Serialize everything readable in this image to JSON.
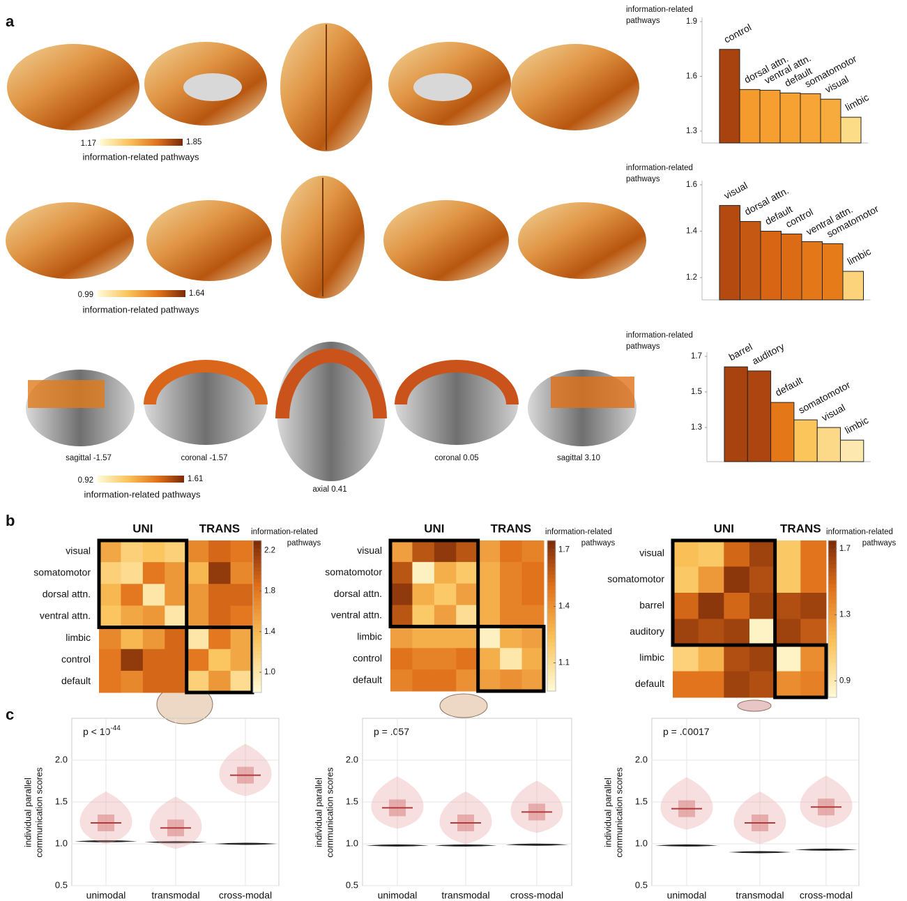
{
  "panel_labels": [
    "a",
    "b",
    "c"
  ],
  "brain_maps": [
    {
      "colorbar_min": 1.17,
      "colorbar_max": 1.85,
      "colorbar_label": "information-related pathways"
    },
    {
      "colorbar_min": 0.99,
      "colorbar_max": 1.64,
      "colorbar_label": "information-related pathways"
    },
    {
      "colorbar_min": 0.92,
      "colorbar_max": 1.61,
      "colorbar_label": "information-related pathways",
      "view_labels": [
        "sagittal -1.57",
        "coronal -1.57",
        "axial 0.41",
        "coronal 0.05",
        "sagittal 3.10"
      ]
    }
  ],
  "chart_data": [
    {
      "type": "bar",
      "ylabel": [
        "information-related",
        "pathways"
      ],
      "categories": [
        "control",
        "dorsal attn.",
        "ventral attn.",
        "default",
        "somatomotor",
        "visual",
        "limbic"
      ],
      "values": [
        1.748,
        1.528,
        1.524,
        1.509,
        1.505,
        1.475,
        1.376
      ],
      "colors": [
        "#a8430f",
        "#f59a2c",
        "#f69e30",
        "#f6a233",
        "#f6a536",
        "#f7ab3d",
        "#fcdc87"
      ],
      "ylim": [
        1.235,
        1.9
      ],
      "yticks": [
        1.3,
        1.6,
        1.9
      ]
    },
    {
      "type": "bar",
      "ylabel": [
        "information-related",
        "pathways"
      ],
      "categories": [
        "visual",
        "dorsal attn.",
        "default",
        "control",
        "ventral attn.",
        "somatomotor",
        "limbic"
      ],
      "values": [
        1.511,
        1.442,
        1.4,
        1.388,
        1.355,
        1.346,
        1.227
      ],
      "colors": [
        "#b54a10",
        "#c55812",
        "#d86514",
        "#dc6b16",
        "#e47818",
        "#e67b1a",
        "#fcd37a"
      ],
      "ylim": [
        1.104,
        1.6
      ],
      "yticks": [
        1.2,
        1.4,
        1.6
      ]
    },
    {
      "type": "bar",
      "ylabel": [
        "information-related",
        "pathways"
      ],
      "categories": [
        "barrel",
        "auditory",
        "default",
        "somatomotor",
        "visual",
        "limbic"
      ],
      "values": [
        1.641,
        1.618,
        1.441,
        1.343,
        1.3,
        1.229
      ],
      "colors": [
        "#a8430f",
        "#ad4510",
        "#e47818",
        "#fbc55b",
        "#fcd988",
        "#fde9b0"
      ],
      "ylim": [
        1.108,
        1.7
      ],
      "yticks": [
        1.3,
        1.5,
        1.7
      ]
    },
    {
      "type": "heatmap",
      "colorbar_label": [
        "information-related",
        "pathways"
      ],
      "groups": [
        {
          "name": "UNI",
          "size": 4
        },
        {
          "name": "TRANS",
          "size": 3
        }
      ],
      "labels": [
        "visual",
        "somatomotor",
        "dorsal attn.",
        "ventral attn.",
        "limbic",
        "control",
        "default"
      ],
      "matrix": [
        [
          1.5,
          1.2,
          1.3,
          1.2,
          1.7,
          1.9,
          1.8
        ],
        [
          1.2,
          1.1,
          1.8,
          1.6,
          1.4,
          2.2,
          1.7
        ],
        [
          1.4,
          1.8,
          1.0,
          1.6,
          1.6,
          1.9,
          1.9
        ],
        [
          1.3,
          1.5,
          1.6,
          1.0,
          1.6,
          1.9,
          1.8
        ],
        [
          1.7,
          1.4,
          1.6,
          1.9,
          1.0,
          1.8,
          1.5
        ],
        [
          1.8,
          2.2,
          1.9,
          1.9,
          1.8,
          1.3,
          1.5
        ],
        [
          1.8,
          1.7,
          1.9,
          1.9,
          1.2,
          1.6,
          1.1
        ]
      ],
      "clim": [
        0.8,
        2.3
      ],
      "cticks": [
        2.2,
        1.8,
        1.4,
        {
          "value": 1,
          "label": "1.0"
        }
      ]
    },
    {
      "type": "heatmap",
      "colorbar_label": [
        "information-related",
        "pathways"
      ],
      "groups": [
        {
          "name": "UNI",
          "size": 4
        },
        {
          "name": "TRANS",
          "size": 3
        }
      ],
      "labels": [
        "visual",
        "somatomotor",
        "dorsal attn.",
        "ventral attn.",
        "limbic",
        "control",
        "default"
      ],
      "matrix": [
        [
          1.35,
          1.6,
          1.7,
          1.6,
          1.35,
          1.5,
          1.45
        ],
        [
          1.6,
          1.0,
          1.3,
          1.2,
          1.3,
          1.45,
          1.5
        ],
        [
          1.7,
          1.3,
          1.2,
          1.35,
          1.3,
          1.45,
          1.5
        ],
        [
          1.6,
          1.2,
          1.35,
          1.1,
          1.3,
          1.45,
          1.45
        ],
        [
          1.35,
          1.3,
          1.3,
          1.3,
          1.0,
          1.3,
          1.35
        ],
        [
          1.5,
          1.45,
          1.45,
          1.5,
          1.3,
          1.05,
          1.3
        ],
        [
          1.45,
          1.5,
          1.5,
          1.4,
          1.35,
          1.4,
          1.35
        ]
      ],
      "clim": [
        0.95,
        1.75
      ],
      "cticks": [
        1.7,
        1.4,
        1.1
      ]
    },
    {
      "type": "heatmap",
      "colorbar_label": [
        "information-related",
        "pathways"
      ],
      "groups": [
        {
          "name": "UNI",
          "size": 4
        },
        {
          "name": "TRANS",
          "size": 2
        }
      ],
      "labels": [
        "visual",
        "somatomotor",
        "barrel",
        "auditory",
        "limbic",
        "default"
      ],
      "matrix": [
        [
          1.15,
          1.1,
          1.5,
          1.65,
          1.1,
          1.45
        ],
        [
          1.1,
          1.3,
          1.7,
          1.6,
          1.1,
          1.45
        ],
        [
          1.5,
          1.7,
          1.5,
          1.65,
          1.6,
          1.65
        ],
        [
          1.65,
          1.6,
          1.65,
          0.85,
          1.65,
          1.55
        ],
        [
          1.05,
          1.2,
          1.6,
          1.65,
          0.85,
          1.35
        ],
        [
          1.45,
          1.45,
          1.65,
          1.6,
          1.35,
          1.4
        ]
      ],
      "clim": [
        0.8,
        1.75
      ],
      "cticks": [
        1.7,
        1.3,
        0.9
      ]
    },
    {
      "type": "violin",
      "ylabel": [
        "individual parallel",
        "communication scores"
      ],
      "annotation": "p < 10",
      "annotation_superscript": "-44",
      "categories": [
        "unimodal",
        "transmodal",
        "cross-modal"
      ],
      "values": [
        1.25,
        1.19,
        1.82
      ],
      "null_values": [
        1.03,
        1.02,
        1.0
      ],
      "ylim": [
        0.5,
        2.5
      ],
      "yticks": [
        0.5,
        {
          "value": 1,
          "label": "1.0"
        },
        1.5,
        {
          "value": 2,
          "label": "2.0"
        }
      ],
      "grid": true
    },
    {
      "type": "violin",
      "ylabel": [
        "individual parallel",
        "communication scores"
      ],
      "annotation": "p = .057",
      "categories": [
        "unimodal",
        "transmodal",
        "cross-modal"
      ],
      "values": [
        1.43,
        1.25,
        1.38
      ],
      "null_values": [
        0.98,
        0.98,
        0.99
      ],
      "ylim": [
        0.5,
        2.5
      ],
      "yticks": [
        0.5,
        {
          "value": 1,
          "label": "1.0"
        },
        1.5,
        {
          "value": 2,
          "label": "2.0"
        }
      ],
      "grid": true
    },
    {
      "type": "violin",
      "ylabel": [
        "individual parallel",
        "communication scores"
      ],
      "annotation": "p = .00017",
      "categories": [
        "unimodal",
        "transmodal",
        "cross-modal"
      ],
      "values": [
        1.42,
        1.25,
        1.44
      ],
      "null_values": [
        0.98,
        0.9,
        0.93
      ],
      "ylim": [
        0.5,
        2.5
      ],
      "yticks": [
        0.5,
        {
          "value": 1,
          "label": "1.0"
        },
        1.5,
        {
          "value": 2,
          "label": "2.0"
        }
      ],
      "grid": true
    }
  ]
}
